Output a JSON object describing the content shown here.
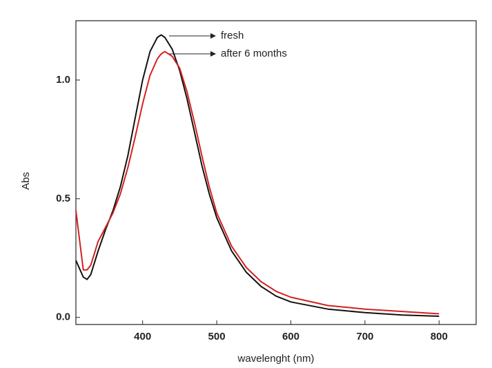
{
  "chart_data": {
    "type": "line",
    "x_label": "wavelenght (nm)",
    "y_label": "Abs",
    "x": [
      310,
      320,
      325,
      330,
      340,
      350,
      360,
      370,
      380,
      390,
      400,
      410,
      420,
      425,
      430,
      440,
      450,
      460,
      470,
      480,
      490,
      500,
      520,
      540,
      560,
      580,
      600,
      650,
      700,
      750,
      800
    ],
    "series": [
      {
        "name": "fresh",
        "color": "#111111",
        "values": [
          0.24,
          0.17,
          0.16,
          0.18,
          0.28,
          0.37,
          0.45,
          0.55,
          0.68,
          0.84,
          1.0,
          1.12,
          1.18,
          1.19,
          1.18,
          1.13,
          1.04,
          0.92,
          0.78,
          0.64,
          0.52,
          0.42,
          0.28,
          0.19,
          0.13,
          0.09,
          0.065,
          0.035,
          0.02,
          0.01,
          0.005
        ]
      },
      {
        "name": "after 6 months",
        "color": "#d42020",
        "values": [
          0.45,
          0.2,
          0.2,
          0.22,
          0.32,
          0.38,
          0.44,
          0.52,
          0.63,
          0.76,
          0.9,
          1.02,
          1.09,
          1.11,
          1.12,
          1.1,
          1.05,
          0.95,
          0.82,
          0.68,
          0.55,
          0.44,
          0.3,
          0.21,
          0.15,
          0.11,
          0.085,
          0.05,
          0.035,
          0.025,
          0.015
        ]
      }
    ],
    "xlim": [
      310,
      850
    ],
    "ylim": [
      -0.03,
      1.25
    ],
    "xticks": [
      400,
      500,
      600,
      700,
      800
    ],
    "yticks": [
      {
        "value": 0,
        "label": "0.0"
      },
      0.5,
      {
        "value": 1,
        "label": "1.0"
      }
    ]
  }
}
